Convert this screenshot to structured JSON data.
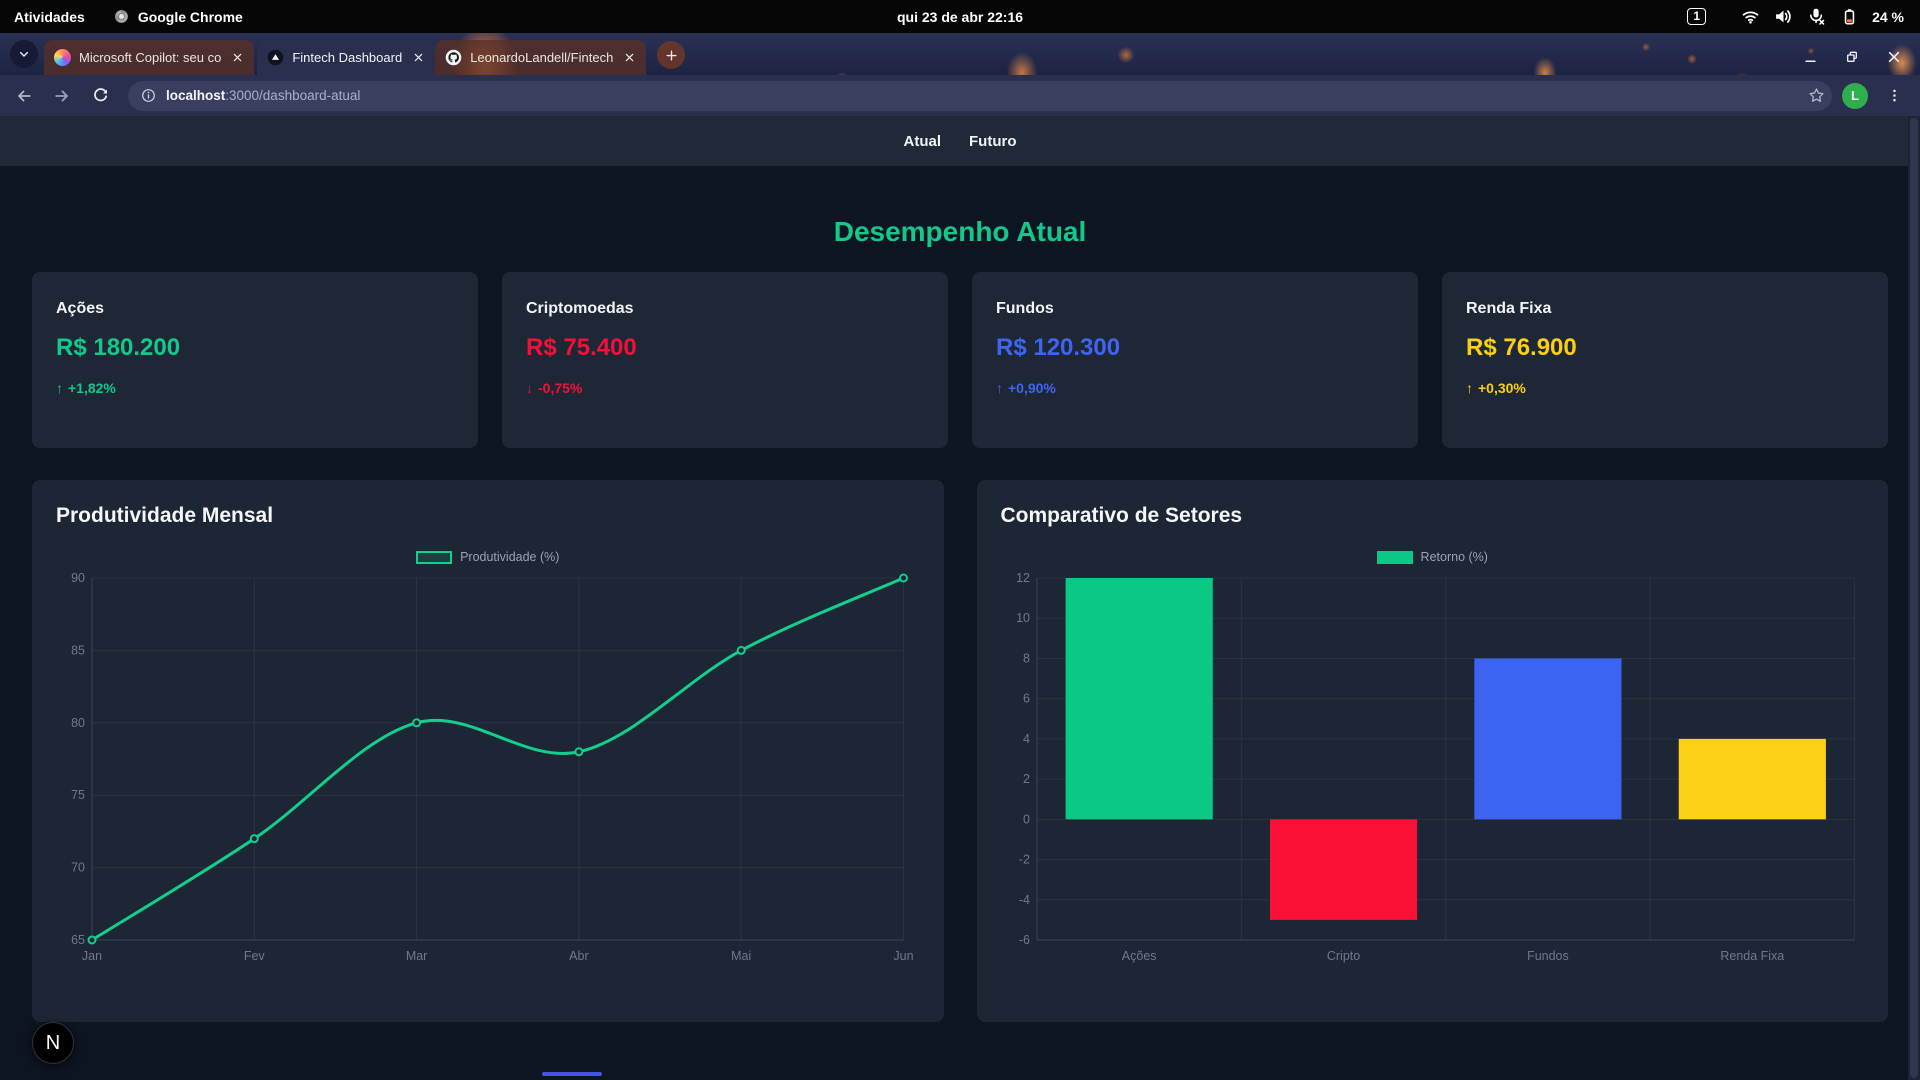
{
  "os_bar": {
    "activities": "Atividades",
    "app_name": "Google Chrome",
    "clock": "qui 23 de abr 22:16",
    "input_indicator": "1",
    "battery_pct": "24 %"
  },
  "browser": {
    "tabs": [
      {
        "title": "Microsoft Copilot: seu co"
      },
      {
        "title": "Fintech Dashboard"
      },
      {
        "title": "LeonardoLandell/Fintech"
      }
    ],
    "url": {
      "host": "localhost",
      "rest": ":3000/dashboard-atual"
    },
    "avatar_letter": "L"
  },
  "nav": {
    "links": [
      "Atual",
      "Futuro"
    ]
  },
  "page": {
    "title": "Desempenho Atual",
    "cards": [
      {
        "label": "Ações",
        "value": "R$ 180.200",
        "change": "+1,82%",
        "direction": "up",
        "color": "#10ca8c"
      },
      {
        "label": "Criptomoedas",
        "value": "R$ 75.400",
        "change": "-0,75%",
        "direction": "down",
        "color": "#f50f38"
      },
      {
        "label": "Fundos",
        "value": "R$ 120.300",
        "change": "+0,90%",
        "direction": "up",
        "color": "#3e64f4"
      },
      {
        "label": "Renda Fixa",
        "value": "R$ 76.900",
        "change": "+0,30%",
        "direction": "up",
        "color": "#fcd010"
      }
    ],
    "dev_badge": "N"
  },
  "chart_data": [
    {
      "type": "line",
      "title": "Produtividade Mensal",
      "legend": "Produtividade (%)",
      "categories": [
        "Jan",
        "Fev",
        "Mar",
        "Abr",
        "Mai",
        "Jun"
      ],
      "values": [
        65,
        72,
        80,
        78,
        85,
        90
      ],
      "ylim": [
        65,
        90
      ],
      "yticks": [
        65,
        70,
        75,
        80,
        85,
        90
      ],
      "color": "#12cf8e",
      "grid": true,
      "legend_position": "top-center"
    },
    {
      "type": "bar",
      "title": "Comparativo de Setores",
      "legend": "Retorno (%)",
      "categories": [
        "Ações",
        "Cripto",
        "Fundos",
        "Renda Fixa"
      ],
      "values": [
        12,
        -5,
        8,
        4
      ],
      "colors": [
        "#0bc985",
        "#fa0f35",
        "#3d63f2",
        "#fcd116"
      ],
      "ylim": [
        -6,
        12
      ],
      "yticks": [
        -6,
        -4,
        -2,
        0,
        2,
        4,
        6,
        8,
        10,
        12
      ],
      "grid": true,
      "legend_position": "top-center"
    }
  ]
}
